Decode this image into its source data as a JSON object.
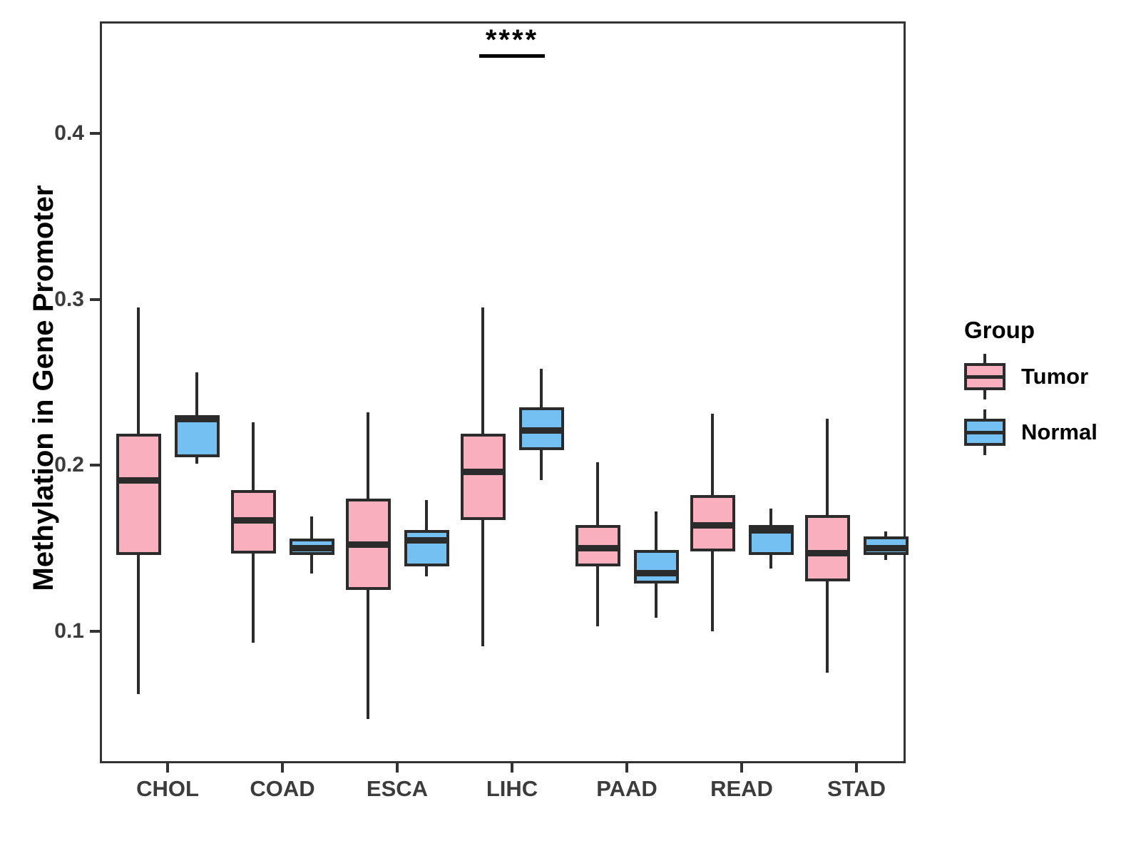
{
  "figure": {
    "y_axis_title": "Methylation in Gene Promoter"
  },
  "legend": {
    "title": "Group",
    "entries": [
      {
        "label": "Tumor",
        "color": "#FAAFBF"
      },
      {
        "label": "Normal",
        "color": "#74C0F2"
      }
    ]
  },
  "annotation": {
    "text": "****",
    "category": "LIHC"
  },
  "chart_data": {
    "type": "boxplot",
    "title": "",
    "xlabel": "",
    "ylabel": "Methylation in Gene Promoter",
    "categories": [
      "CHOL",
      "COAD",
      "ESCA",
      "LIHC",
      "PAAD",
      "READ",
      "STAD"
    ],
    "y_ticks": [
      0.1,
      0.2,
      0.3,
      0.4
    ],
    "ylim": [
      0.02,
      0.467
    ],
    "grid": false,
    "legend_position": "right",
    "legend_title": "Group",
    "significance": {
      "category": "LIHC",
      "label": "****"
    },
    "series": [
      {
        "name": "Tumor",
        "color": "#FAAFBF",
        "boxes": [
          {
            "category": "CHOL",
            "whisker_low": 0.062,
            "q1": 0.146,
            "median": 0.191,
            "q3": 0.219,
            "whisker_high": 0.295
          },
          {
            "category": "COAD",
            "whisker_low": 0.093,
            "q1": 0.147,
            "median": 0.167,
            "q3": 0.185,
            "whisker_high": 0.226
          },
          {
            "category": "ESCA",
            "whisker_low": 0.047,
            "q1": 0.125,
            "median": 0.152,
            "q3": 0.18,
            "whisker_high": 0.232
          },
          {
            "category": "LIHC",
            "whisker_low": 0.091,
            "q1": 0.167,
            "median": 0.196,
            "q3": 0.219,
            "whisker_high": 0.295
          },
          {
            "category": "PAAD",
            "whisker_low": 0.103,
            "q1": 0.139,
            "median": 0.15,
            "q3": 0.164,
            "whisker_high": 0.202
          },
          {
            "category": "READ",
            "whisker_low": 0.1,
            "q1": 0.148,
            "median": 0.164,
            "q3": 0.182,
            "whisker_high": 0.231
          },
          {
            "category": "STAD",
            "whisker_low": 0.075,
            "q1": 0.13,
            "median": 0.147,
            "q3": 0.17,
            "whisker_high": 0.228
          }
        ]
      },
      {
        "name": "Normal",
        "color": "#74C0F2",
        "boxes": [
          {
            "category": "CHOL",
            "whisker_low": 0.201,
            "q1": 0.205,
            "median": 0.228,
            "q3": 0.23,
            "whisker_high": 0.256
          },
          {
            "category": "COAD",
            "whisker_low": 0.135,
            "q1": 0.146,
            "median": 0.15,
            "q3": 0.156,
            "whisker_high": 0.169
          },
          {
            "category": "ESCA",
            "whisker_low": 0.133,
            "q1": 0.139,
            "median": 0.155,
            "q3": 0.161,
            "whisker_high": 0.179
          },
          {
            "category": "LIHC",
            "whisker_low": 0.191,
            "q1": 0.209,
            "median": 0.221,
            "q3": 0.235,
            "whisker_high": 0.258
          },
          {
            "category": "PAAD",
            "whisker_low": 0.108,
            "q1": 0.129,
            "median": 0.135,
            "q3": 0.149,
            "whisker_high": 0.172
          },
          {
            "category": "READ",
            "whisker_low": 0.138,
            "q1": 0.146,
            "median": 0.161,
            "q3": 0.164,
            "whisker_high": 0.174
          },
          {
            "category": "STAD",
            "whisker_low": 0.143,
            "q1": 0.146,
            "median": 0.15,
            "q3": 0.157,
            "whisker_high": 0.16
          }
        ]
      }
    ]
  }
}
